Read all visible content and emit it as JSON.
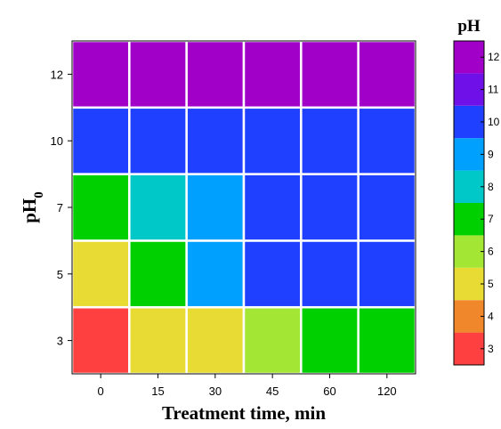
{
  "chart_data": {
    "type": "heatmap",
    "x_categories": [
      "0",
      "15",
      "30",
      "45",
      "60",
      "120"
    ],
    "y_categories": [
      "3",
      "5",
      "7",
      "10",
      "12"
    ],
    "xlabel": "Treatment time, min",
    "ylabel": {
      "main": "pH",
      "subscript": "0"
    },
    "values": [
      [
        3,
        5,
        5,
        6,
        7,
        7
      ],
      [
        5,
        7,
        9,
        10,
        10,
        10
      ],
      [
        7,
        8,
        9,
        10,
        10,
        10
      ],
      [
        10,
        10,
        10,
        10,
        10,
        10
      ],
      [
        12,
        12,
        12,
        12,
        12,
        12
      ]
    ],
    "colorbar": {
      "title": "pH",
      "levels": [
        "3",
        "4",
        "5",
        "6",
        "7",
        "8",
        "9",
        "10",
        "11",
        "12"
      ],
      "colors": {
        "3": "#ff4040",
        "4": "#f0872b",
        "5": "#e8dc34",
        "6": "#a4e634",
        "7": "#00d000",
        "8": "#00c8c8",
        "9": "#00a0ff",
        "10": "#2040ff",
        "11": "#7010e8",
        "12": "#a000c8"
      }
    }
  }
}
